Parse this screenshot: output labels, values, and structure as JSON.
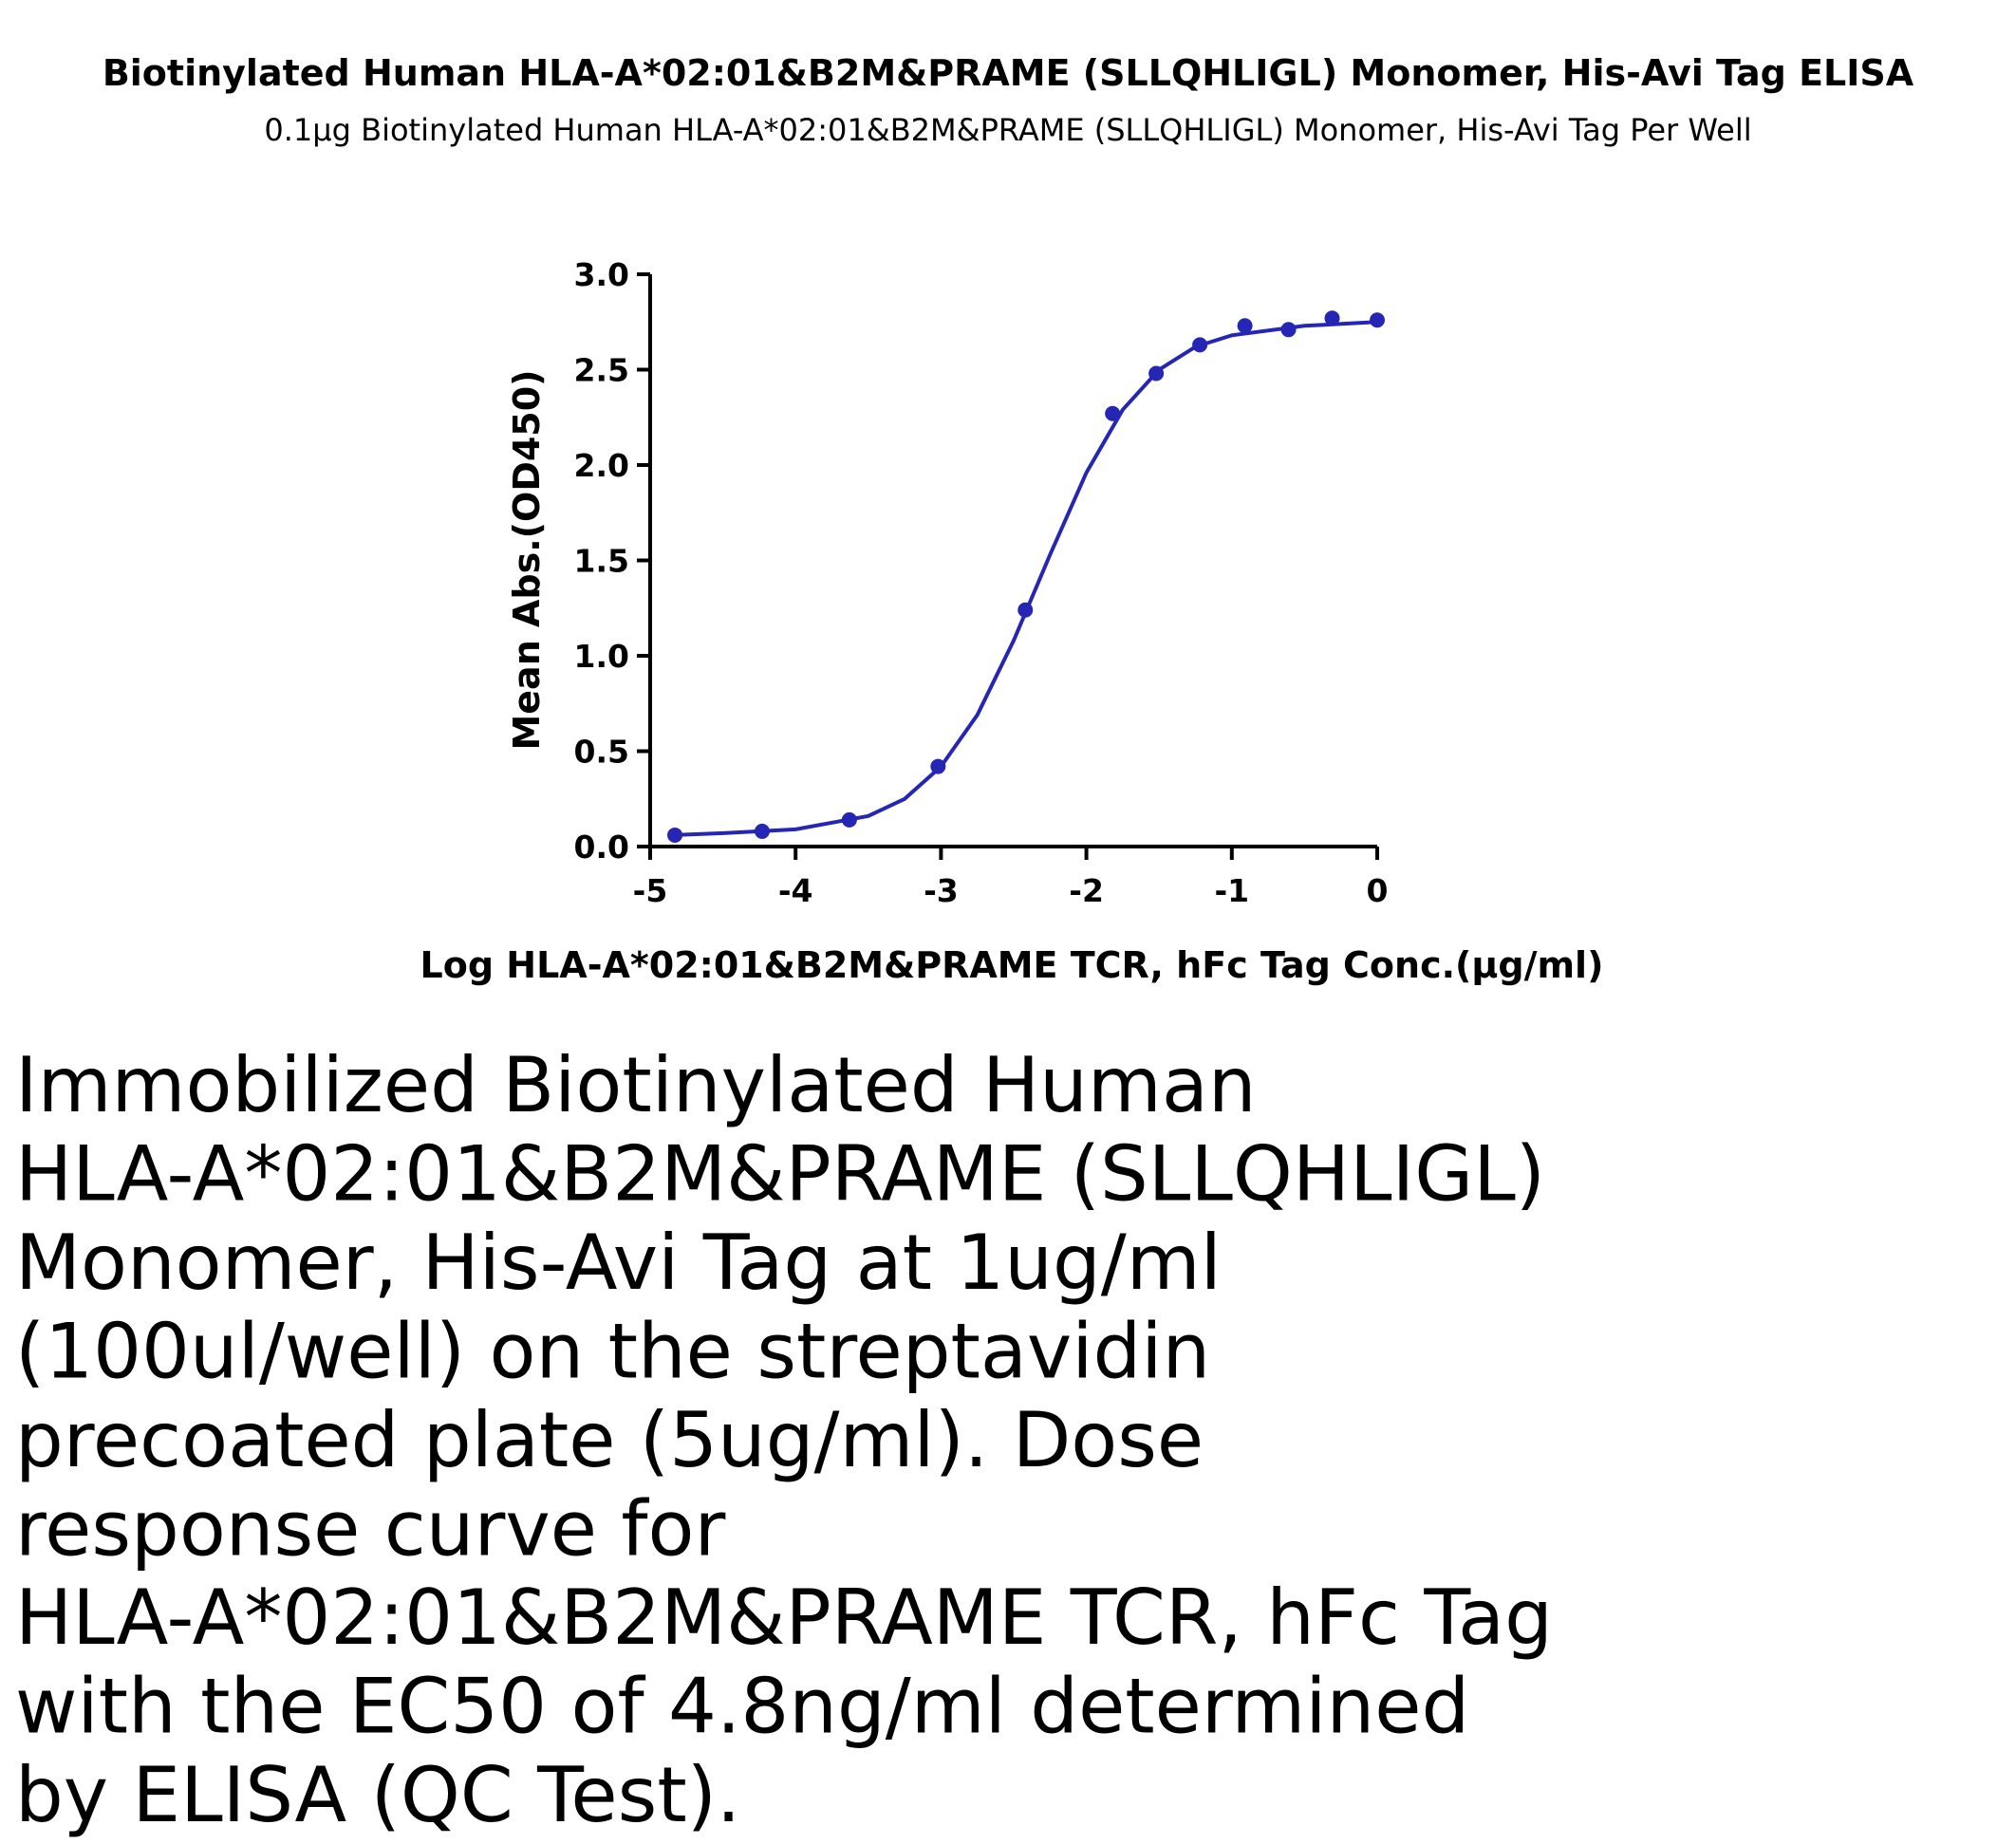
{
  "chart_data": {
    "type": "scatter",
    "title": "Biotinylated Human HLA-A*02:01&B2M&PRAME (SLLQHLIGL) Monomer, His-Avi Tag ELISA",
    "subtitle": "0.1μg Biotinylated Human HLA-A*02:01&B2M&PRAME (SLLQHLIGL) Monomer, His-Avi Tag Per Well",
    "x_label": "Log HLA-A*02:01&B2M&PRAME TCR, hFc Tag Conc.(μg/ml)",
    "y_label": "Mean Abs.(OD450)",
    "xlim": [
      -5,
      0
    ],
    "xticks": [
      -5,
      -4,
      -3,
      -2,
      -1,
      0
    ],
    "ylim": [
      0,
      3
    ],
    "yticks": [
      {
        "value": 0,
        "label": "0.0"
      },
      {
        "value": 0.5,
        "label": "0.5"
      },
      {
        "value": 1,
        "label": "1.0"
      },
      {
        "value": 1.5,
        "label": "1.5"
      },
      {
        "value": 2,
        "label": "2.0"
      },
      {
        "value": 2.5,
        "label": "2.5"
      },
      {
        "value": 3,
        "label": "3.0"
      }
    ],
    "color": "#2626b4",
    "x": [
      -4.83,
      -4.23,
      -3.63,
      -3.02,
      -2.42,
      -1.82,
      -1.52,
      -1.22,
      -0.91,
      -0.61,
      -0.31,
      0
    ],
    "values": [
      0.06,
      0.08,
      0.14,
      0.42,
      1.24,
      2.27,
      2.48,
      2.63,
      2.73,
      2.71,
      2.77,
      2.76
    ],
    "fit": {
      "x": [
        -4.83,
        -4.5,
        -4,
        -3.5,
        -3.25,
        -3,
        -2.75,
        -2.5,
        -2.25,
        -2,
        -1.75,
        -1.5,
        -1.25,
        -1,
        -0.5,
        0
      ],
      "values": [
        0.06,
        0.07,
        0.09,
        0.16,
        0.25,
        0.42,
        0.69,
        1.08,
        1.53,
        1.96,
        2.29,
        2.5,
        2.62,
        2.68,
        2.73,
        2.75
      ]
    }
  },
  "description": [
    "Immobilized Biotinylated Human",
    "HLA-A*02:01&B2M&PRAME (SLLQHLIGL)",
    "Monomer, His-Avi Tag at 1ug/ml",
    "(100ul/well) on the streptavidin",
    "precoated plate (5ug/ml). Dose",
    "response curve for",
    "HLA-A*02:01&B2M&PRAME TCR, hFc Tag",
    "with the EC50 of 4.8ng/ml determined",
    "by ELISA (QC Test)."
  ]
}
